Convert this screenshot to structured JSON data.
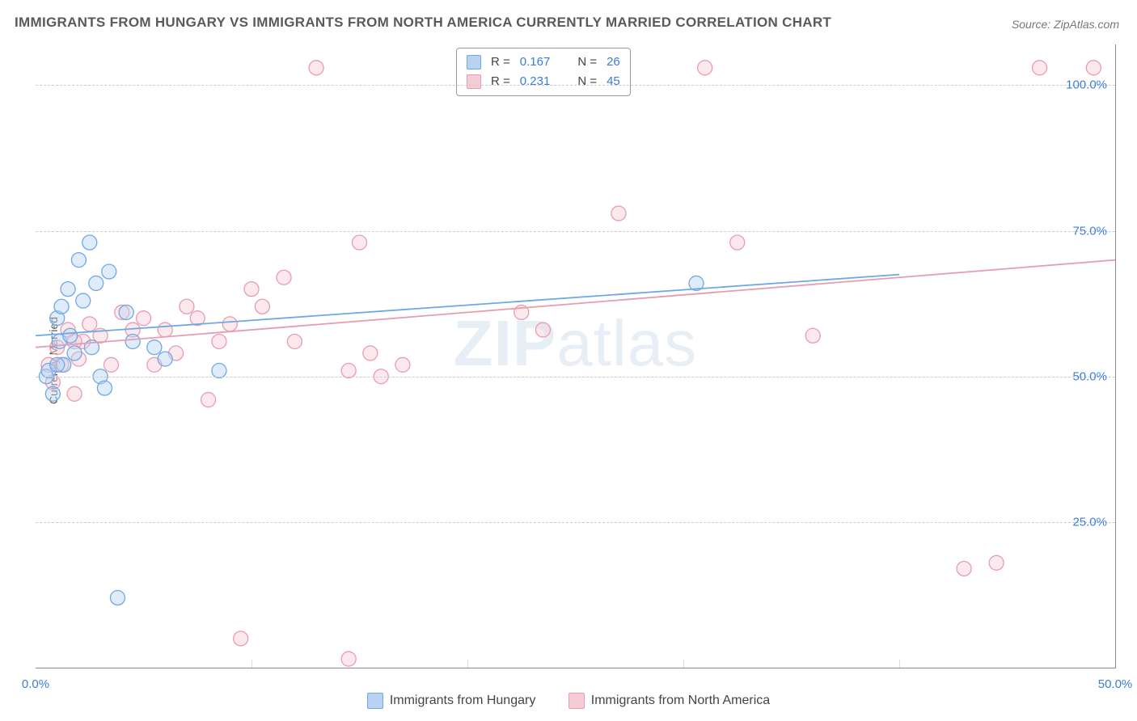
{
  "title": "IMMIGRANTS FROM HUNGARY VS IMMIGRANTS FROM NORTH AMERICA CURRENTLY MARRIED CORRELATION CHART",
  "source": "Source: ZipAtlas.com",
  "watermark_prefix": "ZIP",
  "watermark_suffix": "atlas",
  "y_axis_label": "Currently Married",
  "chart": {
    "type": "scatter",
    "xlim": [
      0,
      50
    ],
    "ylim": [
      0,
      107
    ],
    "x_ticks": [
      0,
      50
    ],
    "x_tick_labels": [
      "0.0%",
      "50.0%"
    ],
    "x_minor_ticks": [
      10,
      20,
      30,
      40
    ],
    "y_ticks": [
      25,
      50,
      75,
      100
    ],
    "y_tick_labels": [
      "25.0%",
      "50.0%",
      "75.0%",
      "100.0%"
    ],
    "background_color": "#ffffff",
    "grid_color": "#cccccc",
    "marker_radius": 9,
    "marker_stroke_width": 1.3,
    "marker_fill_opacity": 0.18,
    "trend_line_width": 1.8,
    "series": [
      {
        "name": "hungary",
        "label": "Immigrants from Hungary",
        "color": "#6fa8e8",
        "fill": "#b8d2f2",
        "r_value": "0.167",
        "n_value": "26",
        "trend": {
          "x1": 0,
          "y1": 57,
          "x2": 40,
          "y2": 67.5
        },
        "points": [
          [
            0.5,
            50
          ],
          [
            0.6,
            51
          ],
          [
            0.8,
            47
          ],
          [
            1.0,
            60
          ],
          [
            1.1,
            56
          ],
          [
            1.2,
            62
          ],
          [
            1.3,
            52
          ],
          [
            1.5,
            65
          ],
          [
            1.6,
            57
          ],
          [
            1.8,
            54
          ],
          [
            2.0,
            70
          ],
          [
            2.2,
            63
          ],
          [
            2.5,
            73
          ],
          [
            2.6,
            55
          ],
          [
            2.8,
            66
          ],
          [
            3.0,
            50
          ],
          [
            3.2,
            48
          ],
          [
            3.4,
            68
          ],
          [
            4.2,
            61
          ],
          [
            4.5,
            56
          ],
          [
            5.5,
            55
          ],
          [
            6.0,
            53
          ],
          [
            8.5,
            51
          ],
          [
            30.6,
            66
          ],
          [
            3.8,
            12
          ],
          [
            1.0,
            52
          ]
        ]
      },
      {
        "name": "north_america",
        "label": "Immigrants from North America",
        "color": "#e89cb0",
        "fill": "#f5ccd6",
        "r_value": "0.231",
        "n_value": "45",
        "trend": {
          "x1": 0,
          "y1": 55,
          "x2": 50,
          "y2": 70
        },
        "points": [
          [
            0.6,
            52
          ],
          [
            0.8,
            49
          ],
          [
            1.0,
            55
          ],
          [
            1.2,
            52
          ],
          [
            1.5,
            58
          ],
          [
            1.8,
            47
          ],
          [
            2.0,
            53
          ],
          [
            2.2,
            56
          ],
          [
            2.5,
            59
          ],
          [
            3.0,
            57
          ],
          [
            3.5,
            52
          ],
          [
            4.0,
            61
          ],
          [
            4.5,
            58
          ],
          [
            5.0,
            60
          ],
          [
            5.5,
            52
          ],
          [
            6.0,
            58
          ],
          [
            6.5,
            54
          ],
          [
            7.0,
            62
          ],
          [
            7.5,
            60
          ],
          [
            8.0,
            46
          ],
          [
            8.5,
            56
          ],
          [
            9.0,
            59
          ],
          [
            10.0,
            65
          ],
          [
            10.5,
            62
          ],
          [
            11.5,
            67
          ],
          [
            12.0,
            56
          ],
          [
            13.0,
            103
          ],
          [
            14.5,
            51
          ],
          [
            15.0,
            73
          ],
          [
            15.5,
            54
          ],
          [
            16.0,
            50
          ],
          [
            17.0,
            52
          ],
          [
            22.5,
            61
          ],
          [
            23.5,
            58
          ],
          [
            27.0,
            78
          ],
          [
            31.0,
            103
          ],
          [
            32.5,
            73
          ],
          [
            36.0,
            57
          ],
          [
            43.0,
            17
          ],
          [
            44.5,
            18
          ],
          [
            46.5,
            103
          ],
          [
            49.0,
            103
          ],
          [
            9.5,
            5
          ],
          [
            14.5,
            1.5
          ],
          [
            1.8,
            56
          ]
        ]
      }
    ]
  },
  "legend_r_label": "R =",
  "legend_n_label": "N ="
}
